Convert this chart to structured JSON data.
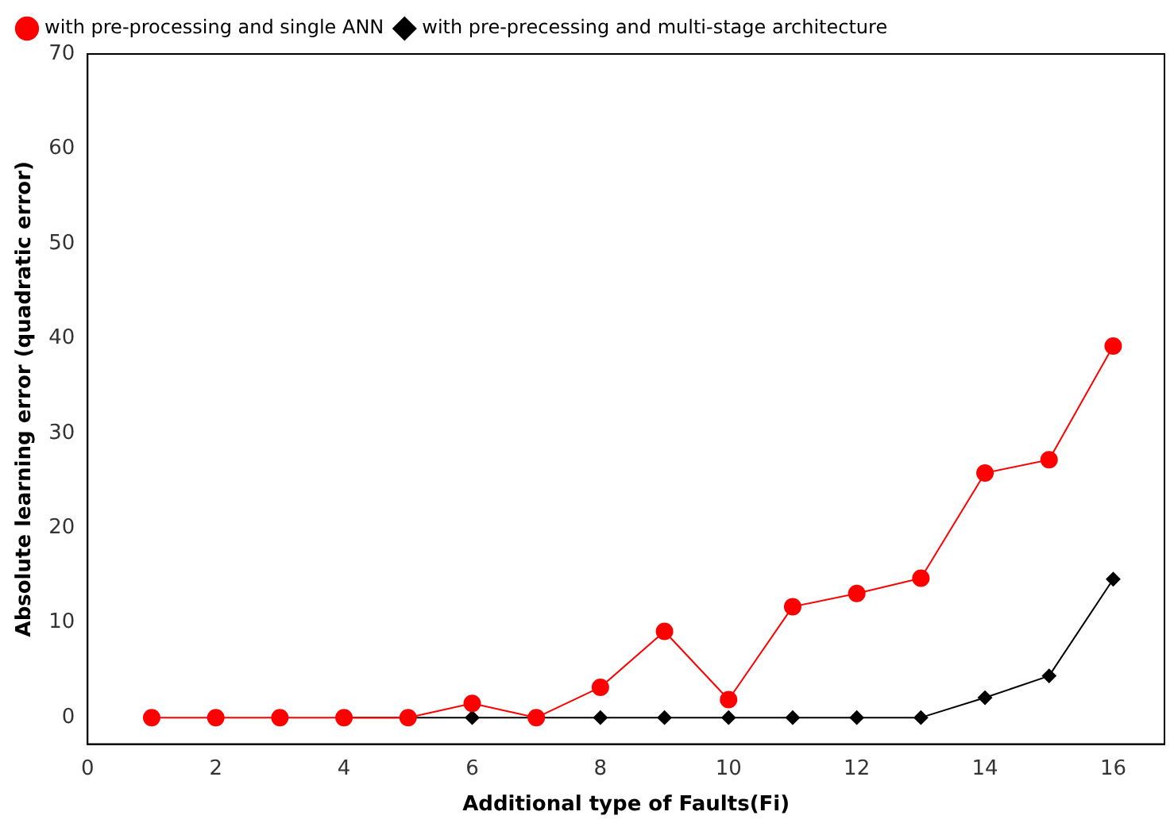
{
  "chart_data": {
    "type": "line",
    "xlabel": "Additional type of Faults(Fi)",
    "ylabel": "Absolute learning error (quadratic error)",
    "x": [
      1,
      2,
      3,
      4,
      5,
      6,
      7,
      8,
      9,
      10,
      11,
      12,
      13,
      14,
      15,
      16
    ],
    "series": [
      {
        "name": "with pre-processing and single ANN",
        "color": "#ff0000",
        "marker": "circle",
        "values": [
          0,
          0,
          0,
          0,
          0,
          1.5,
          0,
          3.2,
          9.1,
          1.9,
          11.7,
          13.1,
          14.7,
          25.8,
          27.2,
          39.2
        ]
      },
      {
        "name": "with pre-precessing and multi-stage architecture",
        "color": "#000000",
        "marker": "diamond",
        "values": [
          null,
          null,
          null,
          0,
          0,
          0,
          0,
          0,
          0,
          0,
          0,
          0,
          0,
          2.1,
          4.4,
          14.6
        ]
      }
    ],
    "xlim": [
      0,
      16.8
    ],
    "xticks": [
      0,
      2,
      4,
      6,
      8,
      10,
      12,
      14,
      16
    ],
    "ylim": [
      -2.8,
      70
    ],
    "yticks": [
      0,
      10,
      20,
      30,
      40,
      50,
      60,
      70
    ],
    "grid": false,
    "legend": "top",
    "line_style": "solid"
  }
}
